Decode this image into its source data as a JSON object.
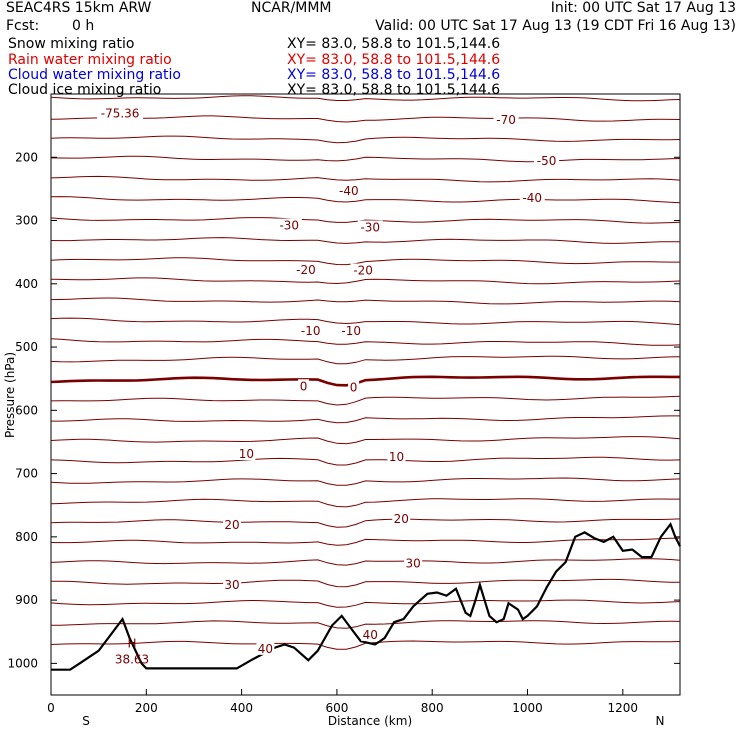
{
  "header": {
    "model": "SEAC4RS 15km ARW",
    "center": "NCAR/MMM",
    "init": "Init: 00 UTC Sat 17 Aug 13",
    "fcst_label": "Fcst:",
    "fcst_value": "0 h",
    "valid": "Valid: 00 UTC Sat 17 Aug 13 (19 CDT Fri 16 Aug 13)"
  },
  "fields": [
    {
      "name": "Snow mixing ratio",
      "xy": "XY=  83.0, 58.8 to 101.5,144.6",
      "color": "#000000"
    },
    {
      "name": "Rain water mixing ratio",
      "xy": "XY=  83.0, 58.8 to 101.5,144.6",
      "color": "#e00000"
    },
    {
      "name": "Cloud water mixing ratio",
      "xy": "XY=  83.0, 58.8 to 101.5,144.6",
      "color": "#0000e0"
    },
    {
      "name": "Cloud ice mixing ratio",
      "xy": "XY=  83.0, 58.8 to 101.5,144.6",
      "color": "#000000"
    }
  ],
  "chart_data": {
    "type": "line",
    "xlabel": "Distance (km)",
    "ylabel": "Pressure (hPa)",
    "xlim": [
      0,
      1320
    ],
    "ylim": [
      1050,
      100
    ],
    "x_ticks": [
      0,
      200,
      400,
      600,
      800,
      1000,
      1200
    ],
    "y_ticks": [
      200,
      300,
      400,
      500,
      600,
      700,
      800,
      900,
      1000
    ],
    "x_end_labels": {
      "left": "S",
      "right": "N"
    },
    "contour_color": "#7a0000",
    "contour_labels": [
      {
        "text": "-75.36",
        "x": 145,
        "p": 131
      },
      {
        "text": "-70",
        "x": 955,
        "p": 141
      },
      {
        "text": "-50",
        "x": 1040,
        "p": 206
      },
      {
        "text": "-40",
        "x": 625,
        "p": 253
      },
      {
        "text": "-40",
        "x": 1010,
        "p": 264
      },
      {
        "text": "-30",
        "x": 500,
        "p": 308
      },
      {
        "text": "-30",
        "x": 670,
        "p": 311
      },
      {
        "text": "-20",
        "x": 535,
        "p": 378
      },
      {
        "text": "-20",
        "x": 655,
        "p": 379
      },
      {
        "text": "-10",
        "x": 545,
        "p": 475
      },
      {
        "text": "-10",
        "x": 630,
        "p": 475
      },
      {
        "text": "0",
        "x": 530,
        "p": 562
      },
      {
        "text": "0",
        "x": 635,
        "p": 564
      },
      {
        "text": "10",
        "x": 410,
        "p": 669
      },
      {
        "text": "10",
        "x": 725,
        "p": 674
      },
      {
        "text": "20",
        "x": 380,
        "p": 781
      },
      {
        "text": "20",
        "x": 735,
        "p": 772
      },
      {
        "text": "30",
        "x": 380,
        "p": 876
      },
      {
        "text": "30",
        "x": 760,
        "p": 842
      },
      {
        "text": "40",
        "x": 450,
        "p": 977
      },
      {
        "text": "40",
        "x": 670,
        "p": 955
      }
    ],
    "max_marker": {
      "symbol": "H",
      "value": "38.63",
      "x": 170,
      "p": 978
    },
    "terrain": {
      "x": [
        0,
        40,
        60,
        100,
        120,
        150,
        165,
        190,
        200,
        240,
        300,
        350,
        390,
        420,
        470,
        490,
        510,
        540,
        560,
        590,
        610,
        630,
        650,
        680,
        700,
        720,
        740,
        760,
        790,
        810,
        830,
        850,
        870,
        880,
        890,
        900,
        920,
        935,
        950,
        960,
        980,
        990,
        1000,
        1020,
        1040,
        1060,
        1080,
        1100,
        1120,
        1140,
        1160,
        1180,
        1200,
        1220,
        1240,
        1260,
        1280,
        1300,
        1310,
        1320
      ],
      "p": [
        1010,
        1010,
        1000,
        980,
        960,
        930,
        960,
        1000,
        1008,
        1008,
        1008,
        1008,
        1008,
        995,
        975,
        970,
        975,
        995,
        980,
        940,
        925,
        945,
        965,
        970,
        960,
        935,
        930,
        910,
        890,
        888,
        893,
        882,
        920,
        925,
        902,
        876,
        925,
        935,
        930,
        905,
        915,
        930,
        925,
        910,
        880,
        855,
        840,
        800,
        793,
        802,
        808,
        800,
        822,
        820,
        832,
        832,
        800,
        780,
        800,
        815
      ]
    }
  }
}
